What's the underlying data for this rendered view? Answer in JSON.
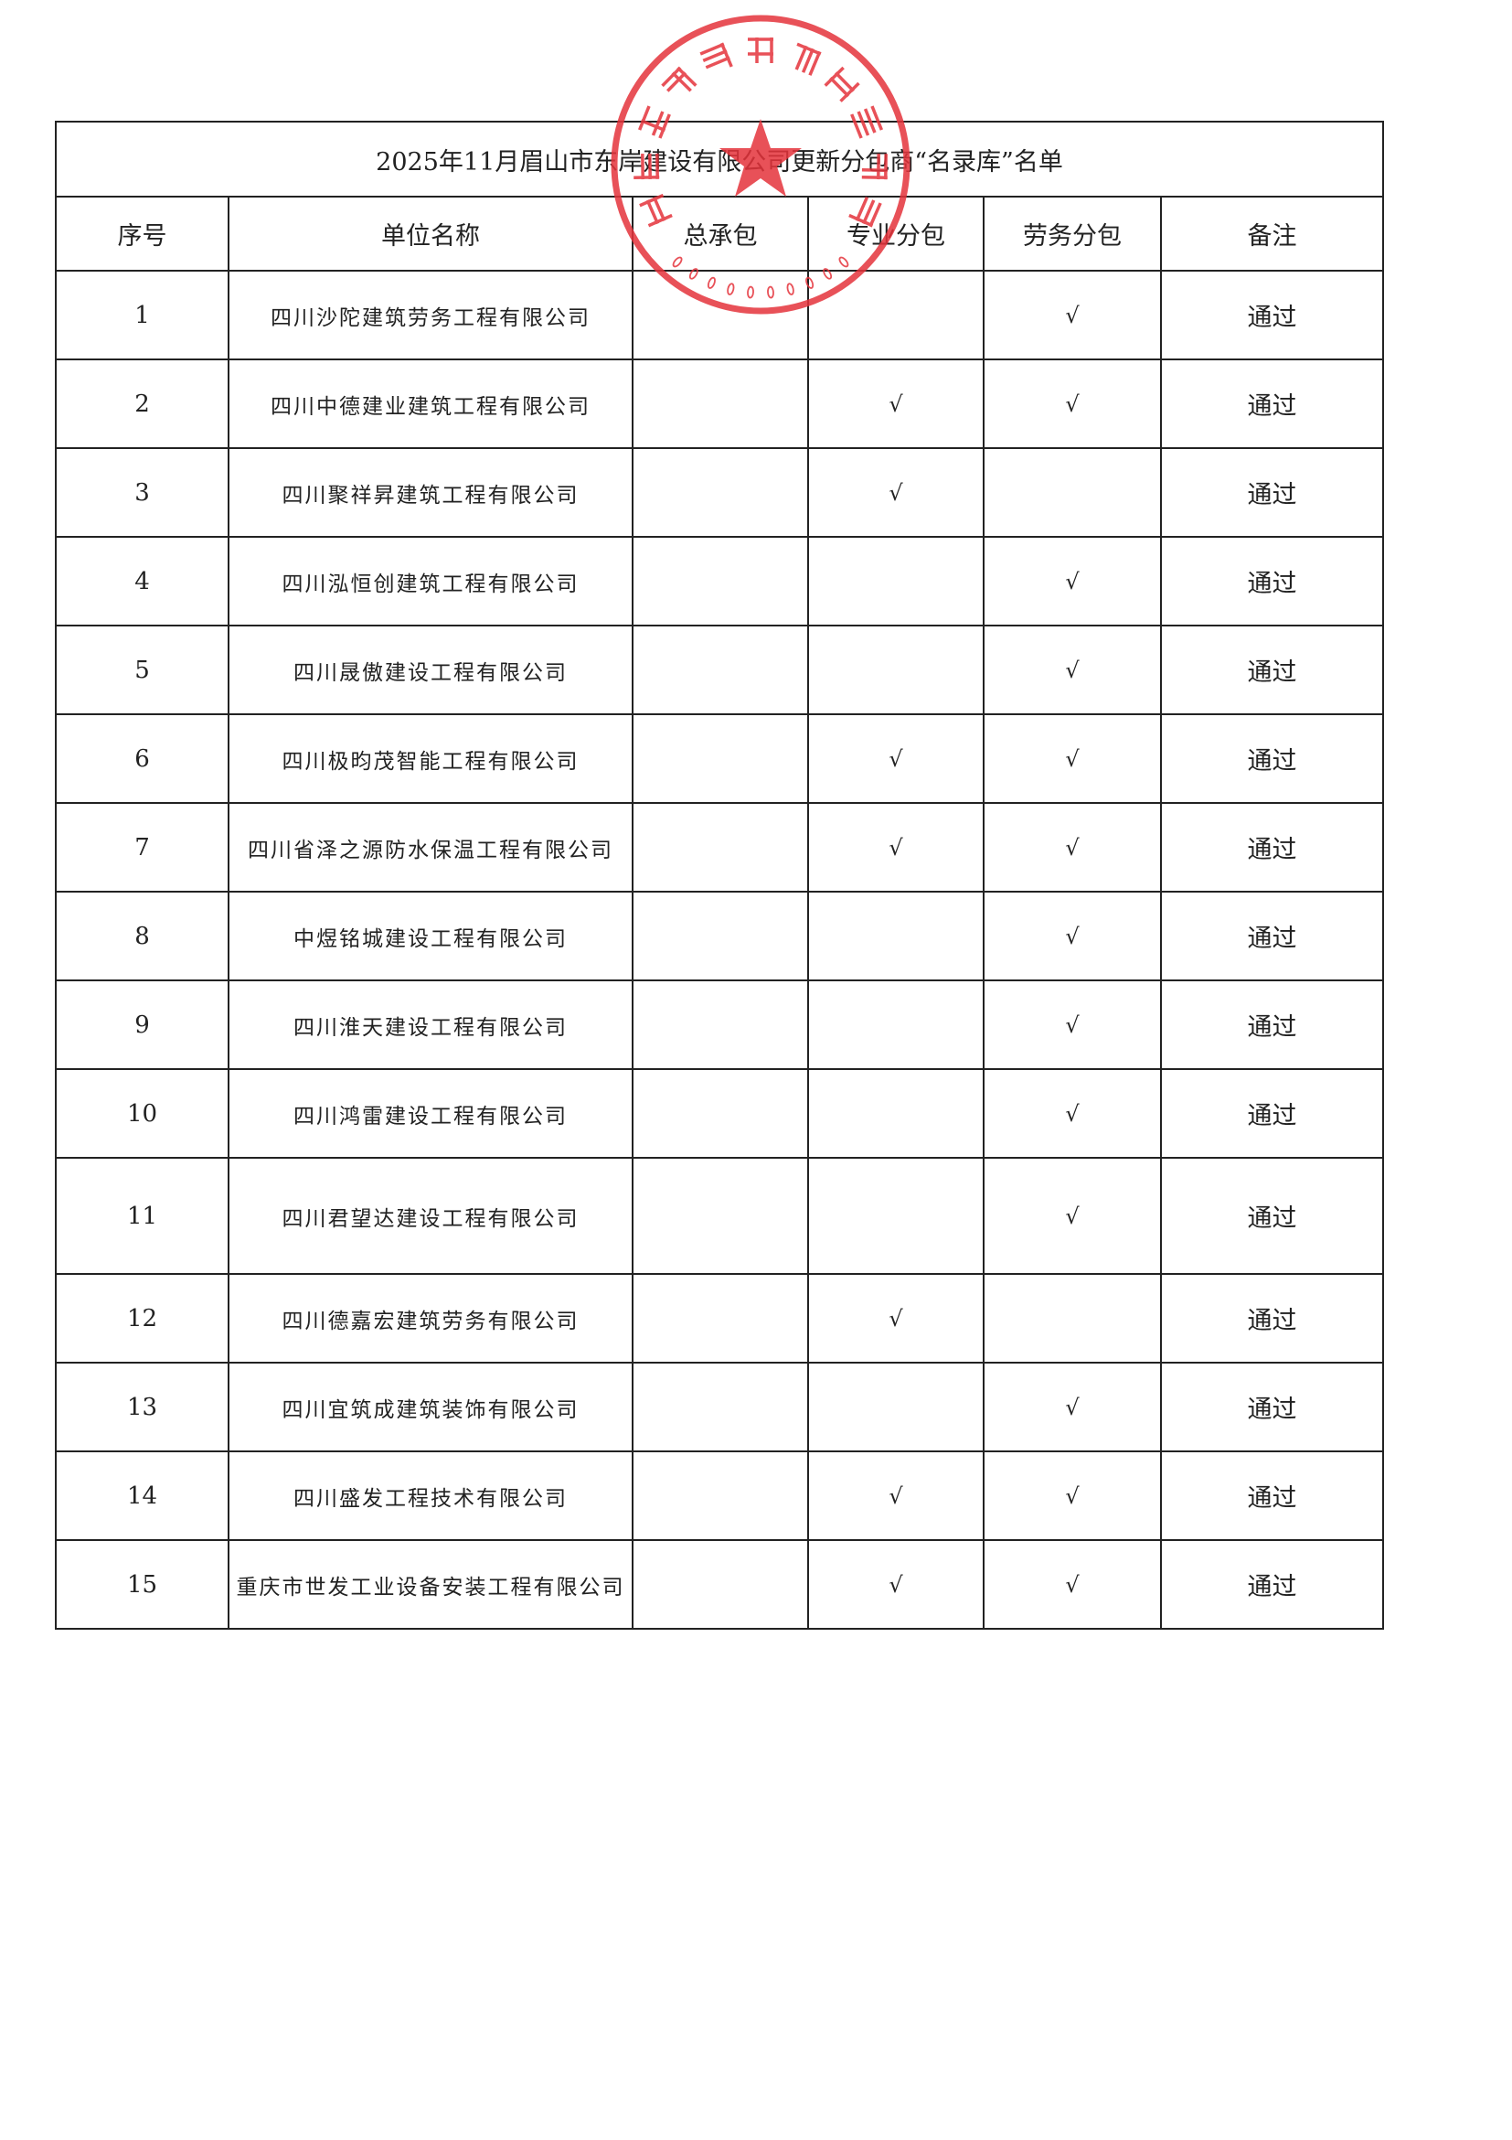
{
  "title": "2025年11月眉山市东岸建设有限公司更新分包商“名录库”名单",
  "headers": [
    "序号",
    "单位名称",
    "总承包",
    "专业分包",
    "劳务分包",
    "备注"
  ],
  "check_mark": "√",
  "rows": [
    {
      "no": "1",
      "name": "四川沙陀建筑劳务工程有限公司",
      "general": "",
      "pro": "",
      "labor": "√",
      "note": "通过"
    },
    {
      "no": "2",
      "name": "四川中德建业建筑工程有限公司",
      "general": "",
      "pro": "√",
      "labor": "√",
      "note": "通过"
    },
    {
      "no": "3",
      "name": "四川聚祥昇建筑工程有限公司",
      "general": "",
      "pro": "√",
      "labor": "",
      "note": "通过"
    },
    {
      "no": "4",
      "name": "四川泓恒创建筑工程有限公司",
      "general": "",
      "pro": "",
      "labor": "√",
      "note": "通过"
    },
    {
      "no": "5",
      "name": "四川晟傲建设工程有限公司",
      "general": "",
      "pro": "",
      "labor": "√",
      "note": "通过"
    },
    {
      "no": "6",
      "name": "四川极昀茂智能工程有限公司",
      "general": "",
      "pro": "√",
      "labor": "√",
      "note": "通过"
    },
    {
      "no": "7",
      "name": "四川省泽之源防水保温工程有限公司",
      "general": "",
      "pro": "√",
      "labor": "√",
      "note": "通过"
    },
    {
      "no": "8",
      "name": "中煜铭城建设工程有限公司",
      "general": "",
      "pro": "",
      "labor": "√",
      "note": "通过"
    },
    {
      "no": "9",
      "name": "四川淮天建设工程有限公司",
      "general": "",
      "pro": "",
      "labor": "√",
      "note": "通过"
    },
    {
      "no": "10",
      "name": "四川鸿雷建设工程有限公司",
      "general": "",
      "pro": "",
      "labor": "√",
      "note": "通过"
    },
    {
      "no": "11",
      "name": "四川君望达建设工程有限公司",
      "general": "",
      "pro": "",
      "labor": "√",
      "note": "通过"
    },
    {
      "no": "12",
      "name": "四川德嘉宏建筑劳务有限公司",
      "general": "",
      "pro": "√",
      "labor": "",
      "note": "通过"
    },
    {
      "no": "13",
      "name": "四川宜筑成建筑装饰有限公司",
      "general": "",
      "pro": "",
      "labor": "√",
      "note": "通过"
    },
    {
      "no": "14",
      "name": "四川盛发工程技术有限公司",
      "general": "",
      "pro": "√",
      "labor": "√",
      "note": "通过"
    },
    {
      "no": "15",
      "name": "重庆市世发工业设备安装工程有限公司",
      "general": "",
      "pro": "√",
      "labor": "√",
      "note": "通过"
    }
  ],
  "stamp": {
    "text": "眉山市东岸建设有限公司",
    "code": "5138215083",
    "color": "#e5333b"
  }
}
